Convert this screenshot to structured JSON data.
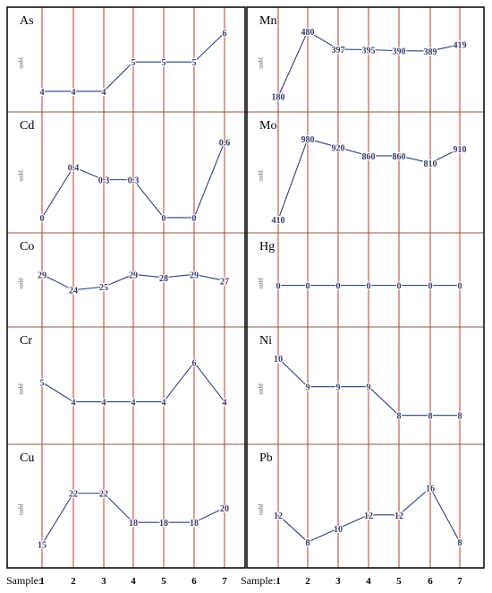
{
  "x_axis": {
    "label": "Sample:",
    "ticks": [
      "1",
      "2",
      "3",
      "4",
      "5",
      "6",
      "7"
    ]
  },
  "y_unit": "ppm",
  "colors": {
    "line": "#2e3f7f",
    "label": "#3a3a6e",
    "grid_vertical": "#c0392b",
    "grid_horizontal": "#8b5a4a",
    "border": "#000000"
  },
  "chart_data": [
    {
      "type": "line",
      "title": "As",
      "ylabel": "ppm",
      "x": [
        1,
        2,
        3,
        4,
        5,
        6,
        7
      ],
      "values": [
        4,
        4,
        4,
        5,
        5,
        5,
        6
      ],
      "labels": [
        "4",
        "4",
        "4",
        "5",
        "5",
        "5",
        "6"
      ],
      "ylim": [
        3.6,
        6.2
      ],
      "grid": true
    },
    {
      "type": "line",
      "title": "Mn",
      "ylabel": "ppm",
      "x": [
        1,
        2,
        3,
        4,
        5,
        6,
        7
      ],
      "values": [
        180,
        480,
        397,
        395,
        390,
        389,
        419
      ],
      "labels": [
        "180",
        "480",
        "397",
        "395",
        "390",
        "389",
        "419"
      ],
      "ylim": [
        150,
        500
      ],
      "grid": true
    },
    {
      "type": "line",
      "title": "Cd",
      "ylabel": "ppm",
      "x": [
        1,
        2,
        3,
        4,
        5,
        6,
        7
      ],
      "values": [
        0,
        0.4,
        0.3,
        0.3,
        0,
        0,
        0.6
      ],
      "labels": [
        "0",
        "0.4",
        "0.3",
        "0.3",
        "0",
        "0",
        "0.6"
      ],
      "ylim": [
        -0.05,
        0.68
      ],
      "grid": true
    },
    {
      "type": "line",
      "title": "Mo",
      "ylabel": "ppm",
      "x": [
        1,
        2,
        3,
        4,
        5,
        6,
        7
      ],
      "values": [
        410,
        980,
        920,
        860,
        860,
        810,
        910
      ],
      "labels": [
        "410",
        "980",
        "920",
        "860",
        "860",
        "810",
        "910"
      ],
      "ylim": [
        380,
        1030
      ],
      "grid": true
    },
    {
      "type": "line",
      "title": "Co",
      "ylabel": "ppm",
      "x": [
        1,
        2,
        3,
        4,
        5,
        6,
        7
      ],
      "values": [
        29,
        24,
        25,
        29,
        28,
        29,
        27
      ],
      "labels": [
        "29",
        "24",
        "25",
        "29",
        "28",
        "29",
        "27"
      ],
      "ylim": [
        15,
        36
      ],
      "grid": true
    },
    {
      "type": "line",
      "title": "Hg",
      "ylabel": "ppm",
      "x": [
        1,
        2,
        3,
        4,
        5,
        6,
        7
      ],
      "values": [
        0,
        0,
        0,
        0,
        0,
        0,
        0
      ],
      "labels": [
        "0",
        "0",
        "0",
        "0",
        "0",
        "0",
        "0"
      ],
      "ylim": [
        -1,
        1
      ],
      "grid": true
    },
    {
      "type": "line",
      "title": "Cr",
      "ylabel": "ppm",
      "x": [
        1,
        2,
        3,
        4,
        5,
        6,
        7
      ],
      "values": [
        5,
        4,
        4,
        4,
        4,
        6,
        4
      ],
      "labels": [
        "5",
        "4",
        "4",
        "4",
        "4",
        "6",
        "4"
      ],
      "ylim": [
        2.3,
        6.8
      ],
      "grid": true
    },
    {
      "type": "line",
      "title": "Ni",
      "ylabel": "ppm",
      "x": [
        1,
        2,
        3,
        4,
        5,
        6,
        7
      ],
      "values": [
        10,
        9,
        9,
        9,
        8,
        8,
        8
      ],
      "labels": [
        "10",
        "9",
        "9",
        "9",
        "8",
        "8",
        "8"
      ],
      "ylim": [
        7.3,
        10.4
      ],
      "grid": true
    },
    {
      "type": "line",
      "title": "Cu",
      "ylabel": "ppm",
      "x": [
        1,
        2,
        3,
        4,
        5,
        6,
        7
      ],
      "values": [
        15,
        22,
        22,
        18,
        18,
        18,
        20
      ],
      "labels": [
        "15",
        "22",
        "22",
        "18",
        "18",
        "18",
        "20"
      ],
      "ylim": [
        13,
        26
      ],
      "grid": true
    },
    {
      "type": "line",
      "title": "Pb",
      "ylabel": "ppm",
      "x": [
        1,
        2,
        3,
        4,
        5,
        6,
        7
      ],
      "values": [
        12,
        8,
        10,
        12,
        12,
        16,
        8
      ],
      "labels": [
        "12",
        "8",
        "10",
        "12",
        "12",
        "16",
        "8"
      ],
      "ylim": [
        5.5,
        19.5
      ],
      "grid": true
    }
  ]
}
